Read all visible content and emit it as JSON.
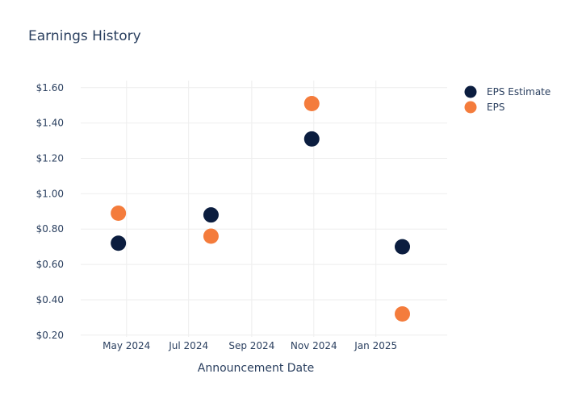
{
  "chart_data": {
    "type": "scatter",
    "title": "Earnings History",
    "xlabel": "Announcement Date",
    "ylabel": "",
    "x_type": "date",
    "xlim": [
      "2024-03-17",
      "2025-03-12"
    ],
    "ylim": [
      0.19,
      1.64
    ],
    "x_ticks": [
      {
        "value": "2024-05-01",
        "label": "May 2024"
      },
      {
        "value": "2024-07-01",
        "label": "Jul 2024"
      },
      {
        "value": "2024-09-01",
        "label": "Sep 2024"
      },
      {
        "value": "2024-11-01",
        "label": "Nov 2024"
      },
      {
        "value": "2025-01-01",
        "label": "Jan 2025"
      }
    ],
    "y_ticks": [
      {
        "value": 0.2,
        "label": "$0.20"
      },
      {
        "value": 0.4,
        "label": "$0.40"
      },
      {
        "value": 0.6,
        "label": "$0.60"
      },
      {
        "value": 0.8,
        "label": "$0.80"
      },
      {
        "value": 1.0,
        "label": "$1.00"
      },
      {
        "value": 1.2,
        "label": "$1.20"
      },
      {
        "value": 1.4,
        "label": "$1.40"
      },
      {
        "value": 1.6,
        "label": "$1.60"
      }
    ],
    "grid": true,
    "legend_position": "top-right",
    "series": [
      {
        "name": "EPS Estimate",
        "color": "#0b1d3f",
        "points": [
          {
            "x": "2024-04-23",
            "y": 0.72
          },
          {
            "x": "2024-07-23",
            "y": 0.88
          },
          {
            "x": "2024-10-30",
            "y": 1.31
          },
          {
            "x": "2025-01-27",
            "y": 0.7
          }
        ]
      },
      {
        "name": "EPS",
        "color": "#f47c3c",
        "points": [
          {
            "x": "2024-04-23",
            "y": 0.89
          },
          {
            "x": "2024-07-23",
            "y": 0.76
          },
          {
            "x": "2024-10-30",
            "y": 1.51
          },
          {
            "x": "2025-01-27",
            "y": 0.32
          }
        ]
      }
    ]
  }
}
